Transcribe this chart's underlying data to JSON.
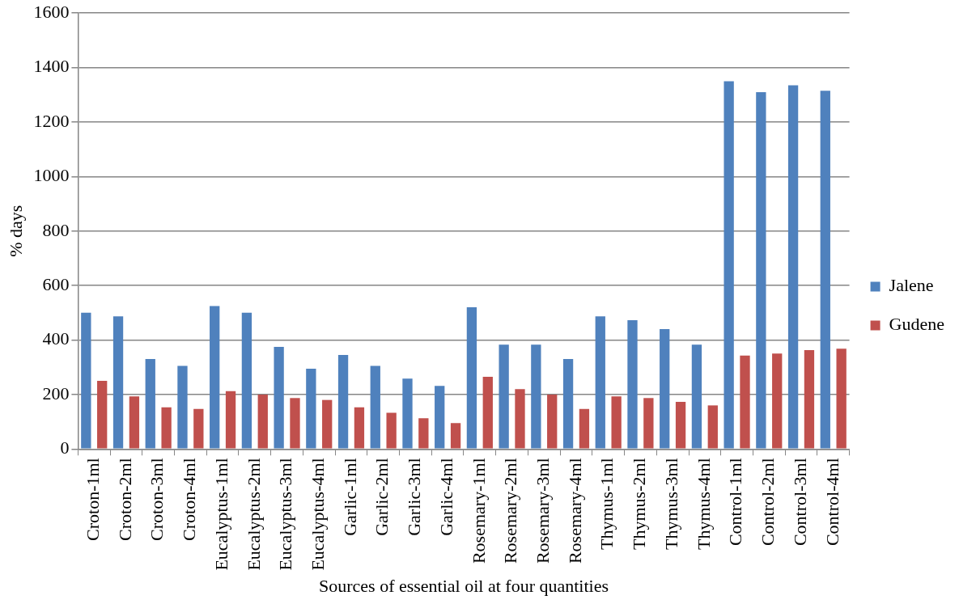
{
  "chart_data": {
    "type": "bar",
    "xlabel": "Sources of essential oil at four quantities",
    "ylabel": "% days",
    "categories": [
      "Croton-1ml",
      "Croton-2ml",
      "Croton-3ml",
      "Croton-4ml",
      "Eucalyptus-1ml",
      "Eucalyptus-2ml",
      "Eucalyptus-3ml",
      "Eucalyptus-4ml",
      "Garlic-1ml",
      "Garlic-2ml",
      "Garlic-3ml",
      "Garlic-4ml",
      "Rosemary-1ml",
      "Rosemary-2ml",
      "Rosemary-3ml",
      "Rosemary-4ml",
      "Thymus-1ml",
      "Thymus-2ml",
      "Thymus-3ml",
      "Thymus-4ml",
      "Control-1ml",
      "Control-2ml",
      "Control-3ml",
      "Control-4ml"
    ],
    "series": [
      {
        "name": "Jalene",
        "color": "#4f81bd",
        "values": [
          500,
          487,
          330,
          305,
          525,
          500,
          375,
          295,
          345,
          305,
          258,
          232,
          520,
          383,
          383,
          330,
          487,
          473,
          440,
          383,
          1350,
          1310,
          1335,
          1315
        ]
      },
      {
        "name": "Gudene",
        "color": "#c0504d",
        "values": [
          250,
          193,
          153,
          147,
          212,
          200,
          187,
          180,
          153,
          133,
          113,
          95,
          265,
          220,
          200,
          147,
          193,
          187,
          173,
          160,
          343,
          350,
          363,
          368
        ]
      }
    ],
    "ylim": [
      0,
      1600
    ],
    "yticks": [
      0,
      200,
      400,
      600,
      800,
      1000,
      1200,
      1400,
      1600
    ],
    "grid": "y",
    "legend": "right"
  }
}
